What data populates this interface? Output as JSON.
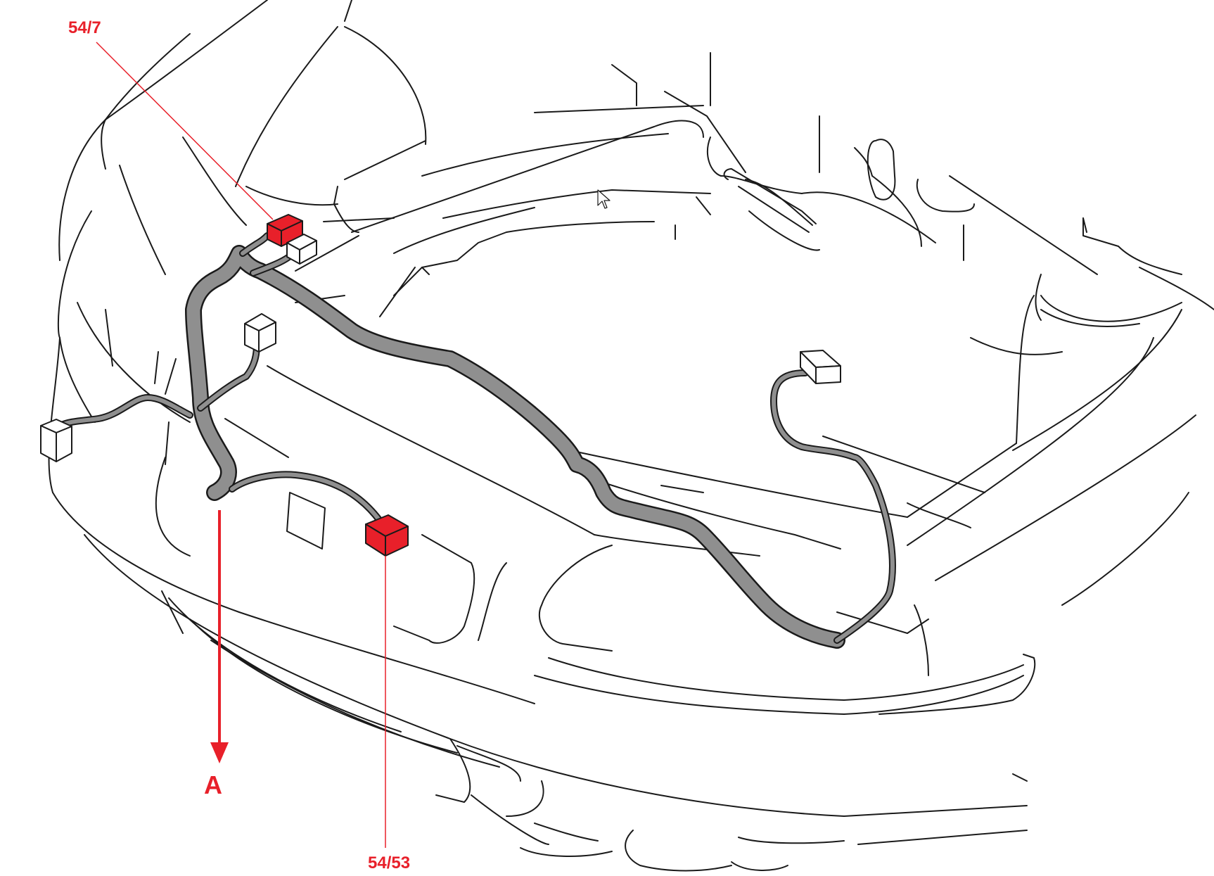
{
  "callouts": {
    "top_connector": "54/7",
    "bottom_connector": "54/53",
    "view_arrow": "A"
  },
  "colors": {
    "highlight": "#e8202a",
    "harness": "#8f8f8f",
    "line": "#1a1a1a",
    "background": "#ffffff"
  },
  "icons": {
    "cursor": "mouse-pointer-icon"
  }
}
